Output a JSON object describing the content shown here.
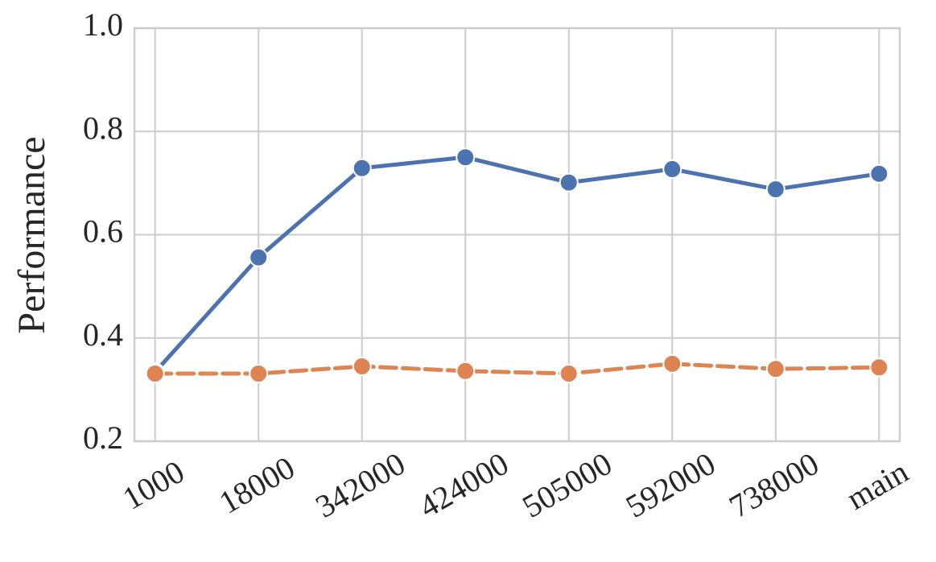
{
  "chart_data": {
    "type": "line",
    "y_label": "Performance",
    "categories": [
      "1000",
      "18000",
      "342000",
      "424000",
      "505000",
      "592000",
      "738000",
      "main"
    ],
    "series": [
      {
        "color": "#4c72b0",
        "linestyle": "solid",
        "values": [
          0.334,
          0.556,
          0.729,
          0.75,
          0.701,
          0.727,
          0.688,
          0.718
        ]
      },
      {
        "color": "#dd8452",
        "linestyle": "dashed",
        "values": [
          0.331,
          0.331,
          0.345,
          0.336,
          0.331,
          0.35,
          0.34,
          0.343
        ]
      }
    ],
    "ylim": [
      0.2,
      1.0
    ],
    "yticks": [
      0.2,
      0.4,
      0.6,
      0.8,
      {
        "value": 1.0,
        "label": "1.0"
      }
    ],
    "grid": true
  }
}
